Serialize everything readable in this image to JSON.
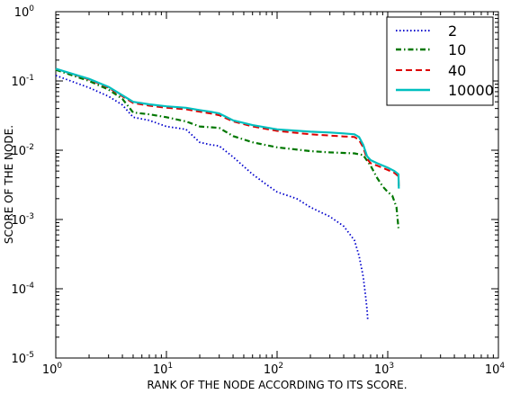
{
  "chart_data": {
    "type": "line",
    "title": "",
    "xlabel": "RANK OF THE NODE ACCORDING TO ITS SCORE.",
    "ylabel": "SCORE OF THE NODE.",
    "xscale": "log",
    "yscale": "log",
    "xlim": [
      1,
      10000
    ],
    "ylim": [
      1e-05,
      1
    ],
    "x_ticks": [
      {
        "base": "10",
        "exp": "0"
      },
      {
        "base": "10",
        "exp": "1"
      },
      {
        "base": "10",
        "exp": "2"
      },
      {
        "base": "10",
        "exp": "3"
      },
      {
        "base": "10",
        "exp": "4"
      }
    ],
    "y_ticks": [
      {
        "base": "10",
        "exp": "-5"
      },
      {
        "base": "10",
        "exp": "-4"
      },
      {
        "base": "10",
        "exp": "-3"
      },
      {
        "base": "10",
        "exp": "-2"
      },
      {
        "base": "10",
        "exp": "-1"
      },
      {
        "base": "10",
        "exp": "0"
      }
    ],
    "grid": false,
    "legend_position": "top-right",
    "series": [
      {
        "name": "2",
        "color": "#0000cc",
        "style": "dotted",
        "points": [
          [
            1,
            0.12
          ],
          [
            2,
            0.08
          ],
          [
            3,
            0.06
          ],
          [
            4,
            0.045
          ],
          [
            5,
            0.03
          ],
          [
            7,
            0.027
          ],
          [
            10,
            0.022
          ],
          [
            15,
            0.02
          ],
          [
            20,
            0.013
          ],
          [
            25,
            0.012
          ],
          [
            30,
            0.0115
          ],
          [
            40,
            0.008
          ],
          [
            60,
            0.0045
          ],
          [
            80,
            0.0032
          ],
          [
            100,
            0.0025
          ],
          [
            150,
            0.002
          ],
          [
            200,
            0.0015
          ],
          [
            300,
            0.0011
          ],
          [
            400,
            0.0008
          ],
          [
            500,
            0.0005
          ],
          [
            550,
            0.0003
          ],
          [
            600,
            0.00015
          ],
          [
            630,
            8e-05
          ],
          [
            650,
            5e-05
          ],
          [
            660,
            3.5e-05
          ]
        ]
      },
      {
        "name": "10",
        "color": "#007700",
        "style": "dashdot",
        "points": [
          [
            1,
            0.145
          ],
          [
            2,
            0.1
          ],
          [
            3,
            0.075
          ],
          [
            4,
            0.055
          ],
          [
            5,
            0.035
          ],
          [
            7,
            0.033
          ],
          [
            10,
            0.03
          ],
          [
            15,
            0.026
          ],
          [
            20,
            0.022
          ],
          [
            30,
            0.021
          ],
          [
            40,
            0.016
          ],
          [
            60,
            0.013
          ],
          [
            100,
            0.011
          ],
          [
            200,
            0.0097
          ],
          [
            300,
            0.0093
          ],
          [
            500,
            0.009
          ],
          [
            600,
            0.0085
          ],
          [
            700,
            0.006
          ],
          [
            800,
            0.004
          ],
          [
            900,
            0.003
          ],
          [
            1000,
            0.0025
          ],
          [
            1100,
            0.0022
          ],
          [
            1200,
            0.0015
          ],
          [
            1250,
            0.00075
          ]
        ]
      },
      {
        "name": "40",
        "color": "#dd0000",
        "style": "dashed",
        "points": [
          [
            1,
            0.15
          ],
          [
            2,
            0.105
          ],
          [
            3,
            0.08
          ],
          [
            4,
            0.06
          ],
          [
            5,
            0.048
          ],
          [
            7,
            0.044
          ],
          [
            10,
            0.041
          ],
          [
            15,
            0.039
          ],
          [
            20,
            0.036
          ],
          [
            25,
            0.034
          ],
          [
            30,
            0.032
          ],
          [
            40,
            0.026
          ],
          [
            60,
            0.022
          ],
          [
            100,
            0.019
          ],
          [
            200,
            0.017
          ],
          [
            300,
            0.0163
          ],
          [
            400,
            0.0158
          ],
          [
            500,
            0.0155
          ],
          [
            550,
            0.014
          ],
          [
            600,
            0.011
          ],
          [
            650,
            0.0075
          ],
          [
            700,
            0.0065
          ],
          [
            800,
            0.006
          ],
          [
            1000,
            0.0052
          ],
          [
            1150,
            0.0047
          ],
          [
            1250,
            0.0042
          ],
          [
            1260,
            0.003
          ]
        ]
      },
      {
        "name": "10000",
        "color": "#00bfbf",
        "style": "solid",
        "points": [
          [
            1,
            0.15
          ],
          [
            2,
            0.107
          ],
          [
            3,
            0.082
          ],
          [
            4,
            0.062
          ],
          [
            5,
            0.05
          ],
          [
            7,
            0.046
          ],
          [
            10,
            0.043
          ],
          [
            15,
            0.041
          ],
          [
            20,
            0.038
          ],
          [
            25,
            0.036
          ],
          [
            30,
            0.034
          ],
          [
            40,
            0.027
          ],
          [
            60,
            0.023
          ],
          [
            100,
            0.02
          ],
          [
            200,
            0.0185
          ],
          [
            300,
            0.018
          ],
          [
            400,
            0.0175
          ],
          [
            500,
            0.017
          ],
          [
            550,
            0.0155
          ],
          [
            600,
            0.012
          ],
          [
            650,
            0.0082
          ],
          [
            700,
            0.0072
          ],
          [
            800,
            0.0065
          ],
          [
            1000,
            0.0056
          ],
          [
            1150,
            0.005
          ],
          [
            1250,
            0.0045
          ],
          [
            1260,
            0.0028
          ]
        ]
      }
    ]
  }
}
